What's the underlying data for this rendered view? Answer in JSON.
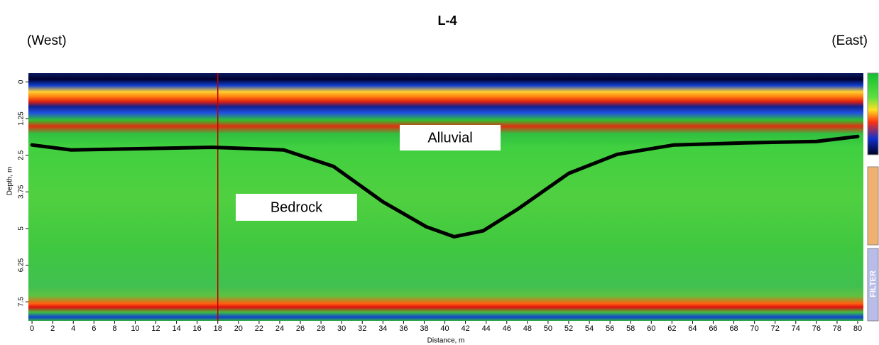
{
  "chart_data": {
    "type": "line",
    "title": "L-4",
    "annotations": [
      "(West)",
      "(East)",
      "Alluvial",
      "Bedrock"
    ],
    "side_label": "FILTER",
    "x_label": "Distance, m",
    "y_label": "Depth, m",
    "xlim": [
      -0.35,
      80.55
    ],
    "ylim": [
      -0.3,
      8.15
    ],
    "y_inverted": true,
    "xticks": [
      0,
      2,
      4,
      6,
      8,
      10,
      12,
      14,
      16,
      18,
      20,
      22,
      24,
      26,
      28,
      30,
      32,
      34,
      36,
      38,
      40,
      42,
      44,
      46,
      48,
      50,
      52,
      54,
      56,
      58,
      60,
      62,
      64,
      66,
      68,
      70,
      72,
      74,
      76,
      78,
      80
    ],
    "yticks": [
      0,
      1.25,
      2.5,
      3.75,
      5,
      6.25,
      7.5
    ],
    "cursor_x": 18,
    "cursor_color": "#c00000",
    "series": [
      {
        "color": "#000000",
        "x": [
          0,
          3.8,
          17.5,
          24.4,
          29.2,
          34,
          38.2,
          40.9,
          43.7,
          47.1,
          52,
          56.7,
          62.2,
          69.1,
          76,
          80
        ],
        "values": [
          2.15,
          2.32,
          2.23,
          2.32,
          2.88,
          4.09,
          4.94,
          5.28,
          5.08,
          4.33,
          3.12,
          2.47,
          2.15,
          2.08,
          2.03,
          1.86
        ]
      }
    ]
  }
}
